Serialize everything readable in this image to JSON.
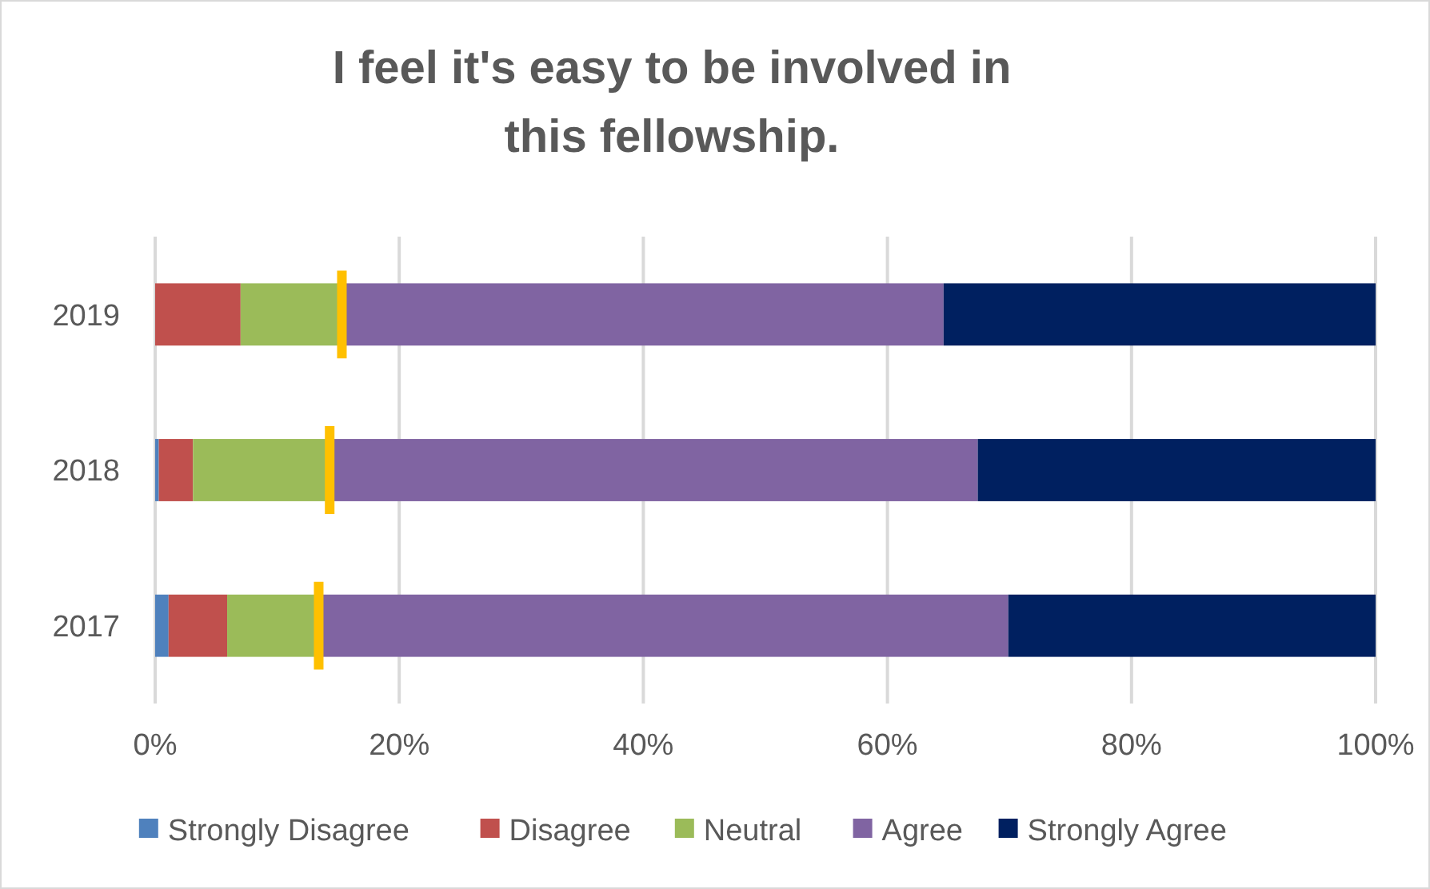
{
  "chart_data": {
    "type": "bar",
    "orientation": "horizontal",
    "stacked": true,
    "title": "I feel it's easy to be involved in this fellowship.",
    "categories": [
      "2019",
      "2018",
      "2017"
    ],
    "series": [
      {
        "name": "Strongly Disagree",
        "color": "#4f81bd",
        "values": [
          0,
          0.3,
          1.1
        ]
      },
      {
        "name": "Disagree",
        "color": "#c0504d",
        "values": [
          7.0,
          2.8,
          4.8
        ]
      },
      {
        "name": "Neutral",
        "color": "#9bbb59",
        "values": [
          8.3,
          11.2,
          7.5
        ]
      },
      {
        "name": "Agree",
        "color": "#8064a2",
        "values": [
          49.3,
          53.1,
          56.5
        ]
      },
      {
        "name": "Strongly Agree",
        "color": "#002060",
        "values": [
          35.4,
          32.6,
          30.1
        ]
      }
    ],
    "xlim": [
      0,
      100
    ],
    "xticks": [
      {
        "value": 0,
        "label": "0%"
      },
      {
        "value": 20,
        "label": "20%"
      },
      {
        "value": 40,
        "label": "40%"
      },
      {
        "value": 60,
        "label": "60%"
      },
      {
        "value": 80,
        "label": "80%"
      },
      {
        "value": 100,
        "label": "100%"
      }
    ],
    "grid": "x",
    "legend": "bottom"
  }
}
